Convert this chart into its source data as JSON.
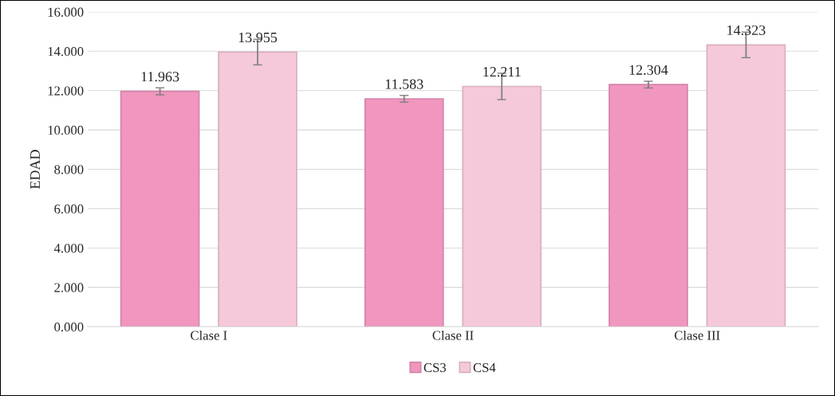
{
  "chart_data": {
    "type": "bar",
    "ylabel": "EDAD",
    "categories": [
      "Clase I",
      "Clase II",
      "Clase III"
    ],
    "series": [
      {
        "name": "CS3",
        "color": "#f096bf",
        "values": [
          11.963,
          11.583,
          12.304
        ],
        "errors": [
          0.18,
          0.17,
          0.17
        ]
      },
      {
        "name": "CS4",
        "color": "#f5c8da",
        "values": [
          13.955,
          12.211,
          14.323
        ],
        "errors": [
          0.65,
          0.67,
          0.65
        ]
      }
    ],
    "ylim": [
      0,
      16
    ],
    "yticks": [
      {
        "value": 0,
        "label": "0.000"
      },
      {
        "value": 2,
        "label": "2.000"
      },
      {
        "value": 4,
        "label": "4.000"
      },
      {
        "value": 6,
        "label": "6.000"
      },
      {
        "value": 8,
        "label": "8.000"
      },
      {
        "value": 10,
        "label": "10.000"
      },
      {
        "value": 12,
        "label": "12.000"
      },
      {
        "value": 14,
        "label": "14.000"
      },
      {
        "value": 16,
        "label": "16.000"
      }
    ],
    "grid": "y",
    "legend": "bottom",
    "data_labels": true
  }
}
